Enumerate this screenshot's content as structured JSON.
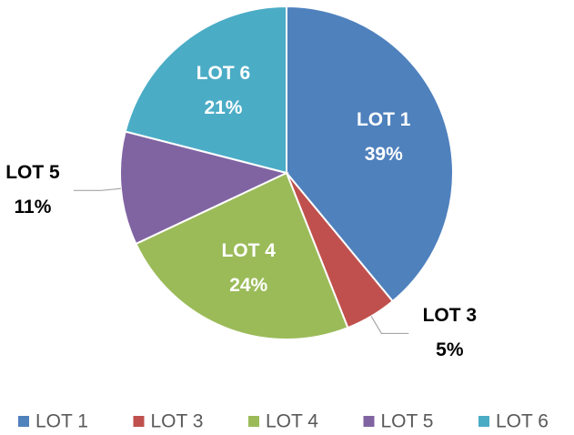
{
  "chart_data": {
    "type": "pie",
    "categories": [
      "LOT 1",
      "LOT 3",
      "LOT 4",
      "LOT 5",
      "LOT 6"
    ],
    "values": [
      39,
      5,
      24,
      11,
      21
    ],
    "value_labels": [
      "39%",
      "5%",
      "24%",
      "11%",
      "21%"
    ],
    "colors": [
      "#4f81bd",
      "#c0504d",
      "#9bbb59",
      "#8064a2",
      "#4bacc6"
    ],
    "legend": "bottom"
  }
}
